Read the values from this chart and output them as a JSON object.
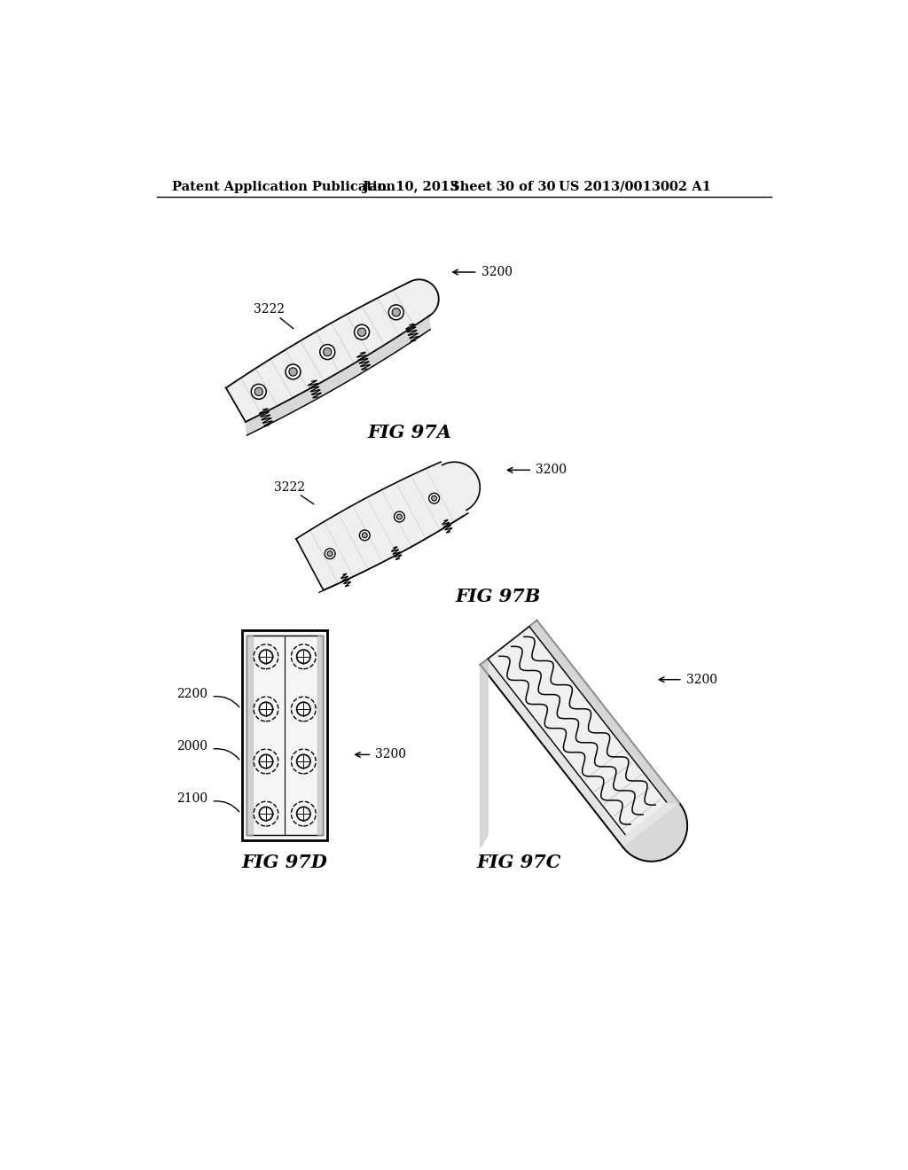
{
  "bg_color": "#ffffff",
  "header_text": "Patent Application Publication",
  "header_date": "Jan. 10, 2013",
  "header_sheet": "Sheet 30 of 30",
  "header_patent": "US 2013/0013002 A1",
  "fig97a_label": "FIG 97A",
  "fig97b_label": "FIG 97B",
  "fig97c_label": "FIG 97C",
  "fig97d_label": "FIG 97D",
  "ref_3200": "3200",
  "ref_3222": "3222",
  "ref_2100": "2100",
  "ref_2000": "2000",
  "ref_2200": "2200",
  "line_color": "#000000",
  "text_color": "#000000",
  "header_fontsize": 10.5,
  "ref_fontsize": 10,
  "fig_label_fontsize": 15
}
